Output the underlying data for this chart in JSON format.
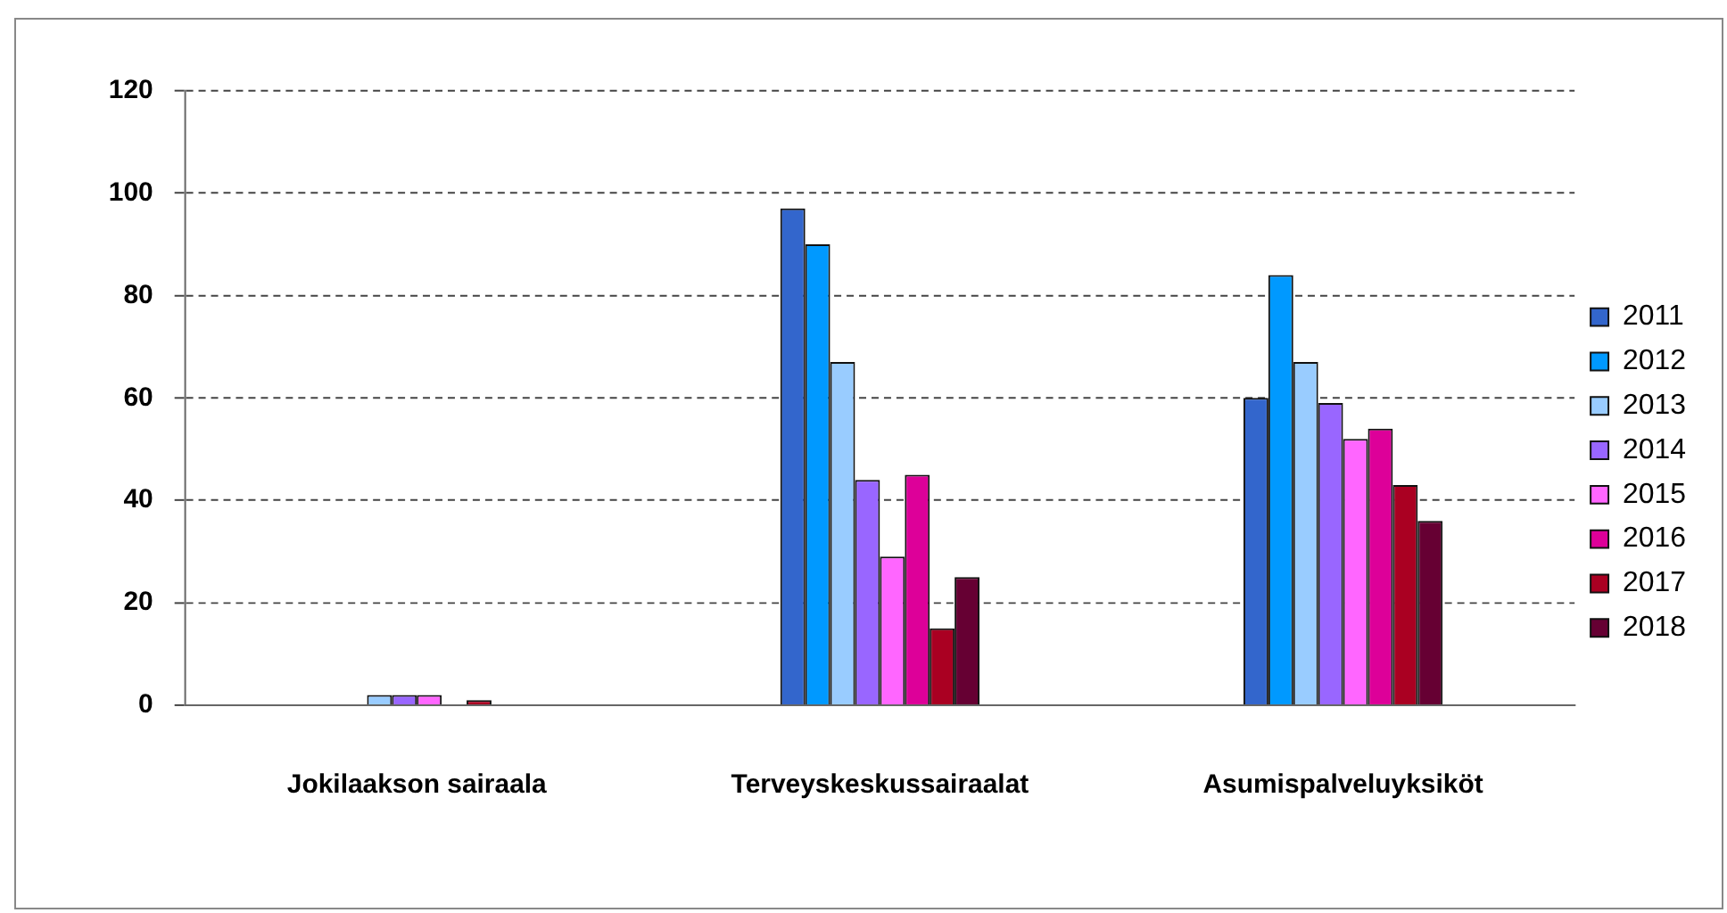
{
  "chart_data": {
    "type": "bar",
    "categories": [
      "Jokilaakson sairaala",
      "Terveyskeskussairaalat",
      "Asumispalveluyksiköt"
    ],
    "series": [
      {
        "name": "2011",
        "color": "#3366cc",
        "values": [
          null,
          97,
          60
        ]
      },
      {
        "name": "2012",
        "color": "#0099ff",
        "values": [
          null,
          90,
          84
        ]
      },
      {
        "name": "2013",
        "color": "#99ccff",
        "values": [
          2,
          67,
          67
        ]
      },
      {
        "name": "2014",
        "color": "#9966ff",
        "values": [
          2,
          44,
          59
        ]
      },
      {
        "name": "2015",
        "color": "#ff66ff",
        "values": [
          2,
          29,
          52
        ]
      },
      {
        "name": "2016",
        "color": "#dd0099",
        "values": [
          null,
          45,
          54
        ]
      },
      {
        "name": "2017",
        "color": "#aa0022",
        "values": [
          1,
          15,
          43
        ]
      },
      {
        "name": "2018",
        "color": "#660033",
        "values": [
          null,
          25,
          36
        ]
      }
    ],
    "ylim": [
      0,
      120
    ],
    "yticks": [
      0,
      20,
      40,
      60,
      80,
      100,
      120
    ],
    "grid": "y",
    "legend": "right"
  }
}
